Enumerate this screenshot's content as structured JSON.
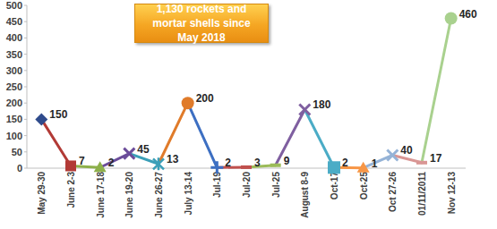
{
  "chart_data": {
    "type": "line",
    "categories": [
      "May 29-30",
      "June 2-3",
      "June 17-18",
      "June 19-20",
      "June 26-27",
      "July 13-14",
      "Jul-19",
      "Jul-20",
      "Jul-25",
      "August 8-9",
      "Oct-17",
      "Oct-25",
      "Oct 27-26",
      "01/11/2011",
      "Nov 12-13"
    ],
    "values": [
      150,
      7,
      2,
      45,
      13,
      200,
      2,
      3,
      9,
      180,
      2,
      1,
      40,
      17,
      460
    ],
    "colors": [
      "#2f4b8c",
      "#b23a36",
      "#8db04a",
      "#6b4c9a",
      "#3b9fb8",
      "#e07b2a",
      "#3d6fc2",
      "#c0504d",
      "#9bbb59",
      "#7f5fa0",
      "#4bacc6",
      "#f79646",
      "#95b3d7",
      "#d99694",
      "#a9d18e"
    ],
    "ylim": [
      0,
      500
    ],
    "yticks": [
      0,
      50,
      100,
      150,
      200,
      250,
      300,
      350,
      400,
      450,
      500
    ],
    "grid": false,
    "data_labels": true,
    "annotation": "1,130 rockets and mortar shells since May 2018"
  }
}
